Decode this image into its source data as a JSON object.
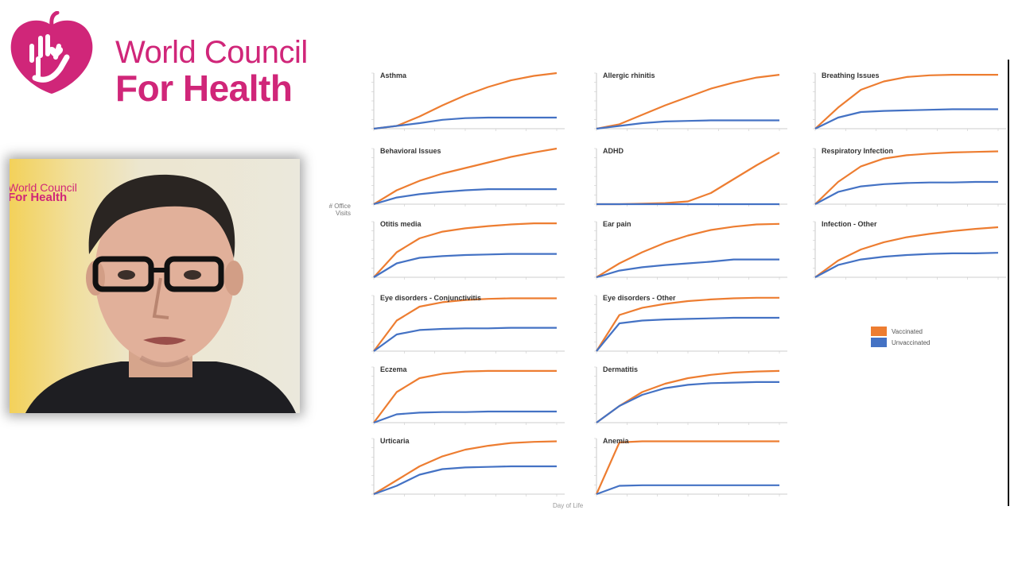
{
  "logo": {
    "line1": "World Council",
    "line2": "For Health",
    "color": "#d02679"
  },
  "video": {
    "logo_line1": "World Council",
    "logo_line2": "For Health"
  },
  "axis": {
    "ylabel": "# Office Visits",
    "xlabel": "Day of Life"
  },
  "legend": [
    {
      "label": "Vaccinated",
      "color": "#ed7d31"
    },
    {
      "label": "Unvaccinated",
      "color": "#4472c4"
    }
  ],
  "chart_data": [
    {
      "type": "line",
      "title": "Asthma",
      "series": [
        {
          "name": "Vaccinated",
          "values": [
            0,
            0.05,
            0.22,
            0.42,
            0.6,
            0.75,
            0.87,
            0.95,
            1.0
          ]
        },
        {
          "name": "Unvaccinated",
          "values": [
            0,
            0.05,
            0.1,
            0.16,
            0.19,
            0.2,
            0.2,
            0.2,
            0.2
          ]
        }
      ]
    },
    {
      "type": "line",
      "title": "Allergic rhinitis",
      "series": [
        {
          "name": "Vaccinated",
          "values": [
            0,
            0.08,
            0.25,
            0.42,
            0.57,
            0.72,
            0.83,
            0.92,
            0.97
          ]
        },
        {
          "name": "Unvaccinated",
          "values": [
            0,
            0.05,
            0.1,
            0.13,
            0.14,
            0.15,
            0.15,
            0.15,
            0.15
          ]
        }
      ]
    },
    {
      "type": "line",
      "title": "Breathing Issues",
      "series": [
        {
          "name": "Vaccinated",
          "values": [
            0,
            0.38,
            0.7,
            0.85,
            0.93,
            0.96,
            0.97,
            0.97,
            0.97
          ]
        },
        {
          "name": "Unvaccinated",
          "values": [
            0,
            0.2,
            0.3,
            0.32,
            0.33,
            0.34,
            0.35,
            0.35,
            0.35
          ]
        }
      ]
    },
    {
      "type": "line",
      "title": "Behavioral Issues",
      "series": [
        {
          "name": "Vaccinated",
          "values": [
            0,
            0.25,
            0.42,
            0.55,
            0.65,
            0.75,
            0.85,
            0.93,
            1.0
          ]
        },
        {
          "name": "Unvaccinated",
          "values": [
            0,
            0.12,
            0.18,
            0.22,
            0.25,
            0.27,
            0.27,
            0.27,
            0.27
          ]
        }
      ]
    },
    {
      "type": "line",
      "title": "ADHD",
      "series": [
        {
          "name": "Vaccinated",
          "values": [
            0,
            0,
            0.01,
            0.02,
            0.05,
            0.2,
            0.45,
            0.7,
            0.93
          ]
        },
        {
          "name": "Unvaccinated",
          "values": [
            0,
            0,
            0,
            0,
            0,
            0,
            0,
            0,
            0
          ]
        }
      ]
    },
    {
      "type": "line",
      "title": "Respiratory Infection",
      "series": [
        {
          "name": "Vaccinated",
          "values": [
            0,
            0.4,
            0.68,
            0.82,
            0.88,
            0.91,
            0.93,
            0.94,
            0.95
          ]
        },
        {
          "name": "Unvaccinated",
          "values": [
            0,
            0.22,
            0.32,
            0.36,
            0.38,
            0.39,
            0.39,
            0.4,
            0.4
          ]
        }
      ]
    },
    {
      "type": "line",
      "title": "Otitis media",
      "series": [
        {
          "name": "Vaccinated",
          "values": [
            0,
            0.45,
            0.7,
            0.82,
            0.88,
            0.92,
            0.95,
            0.97,
            0.97
          ]
        },
        {
          "name": "Unvaccinated",
          "values": [
            0,
            0.25,
            0.35,
            0.38,
            0.4,
            0.41,
            0.42,
            0.42,
            0.42
          ]
        }
      ]
    },
    {
      "type": "line",
      "title": "Ear pain",
      "series": [
        {
          "name": "Vaccinated",
          "values": [
            0,
            0.25,
            0.45,
            0.62,
            0.75,
            0.85,
            0.91,
            0.95,
            0.96
          ]
        },
        {
          "name": "Unvaccinated",
          "values": [
            0,
            0.12,
            0.18,
            0.22,
            0.25,
            0.28,
            0.32,
            0.32,
            0.32
          ]
        }
      ]
    },
    {
      "type": "line",
      "title": "Infection - Other",
      "series": [
        {
          "name": "Vaccinated",
          "values": [
            0,
            0.3,
            0.5,
            0.63,
            0.72,
            0.78,
            0.83,
            0.87,
            0.9
          ]
        },
        {
          "name": "Unvaccinated",
          "values": [
            0,
            0.22,
            0.32,
            0.37,
            0.4,
            0.42,
            0.43,
            0.43,
            0.44
          ]
        }
      ]
    },
    {
      "type": "line",
      "title": "Eye disorders - Conjunctivitis",
      "series": [
        {
          "name": "Vaccinated",
          "values": [
            0,
            0.55,
            0.8,
            0.88,
            0.92,
            0.94,
            0.95,
            0.95,
            0.95
          ]
        },
        {
          "name": "Unvaccinated",
          "values": [
            0,
            0.3,
            0.38,
            0.4,
            0.41,
            0.41,
            0.42,
            0.42,
            0.42
          ]
        }
      ]
    },
    {
      "type": "line",
      "title": "Eye disorders - Other",
      "series": [
        {
          "name": "Vaccinated",
          "values": [
            0,
            0.65,
            0.78,
            0.85,
            0.9,
            0.93,
            0.95,
            0.96,
            0.96
          ]
        },
        {
          "name": "Unvaccinated",
          "values": [
            0,
            0.5,
            0.55,
            0.57,
            0.58,
            0.59,
            0.6,
            0.6,
            0.6
          ]
        }
      ]
    },
    {
      "type": "line",
      "title": "Eczema",
      "series": [
        {
          "name": "Vaccinated",
          "values": [
            0,
            0.55,
            0.8,
            0.88,
            0.92,
            0.93,
            0.93,
            0.93,
            0.93
          ]
        },
        {
          "name": "Unvaccinated",
          "values": [
            0,
            0.15,
            0.18,
            0.19,
            0.19,
            0.2,
            0.2,
            0.2,
            0.2
          ]
        }
      ]
    },
    {
      "type": "line",
      "title": "Dermatitis",
      "series": [
        {
          "name": "Vaccinated",
          "values": [
            0,
            0.3,
            0.55,
            0.7,
            0.8,
            0.86,
            0.9,
            0.92,
            0.93
          ]
        },
        {
          "name": "Unvaccinated",
          "values": [
            0,
            0.3,
            0.5,
            0.62,
            0.68,
            0.71,
            0.72,
            0.73,
            0.73
          ]
        }
      ]
    },
    {
      "type": "line",
      "title": "Urticaria",
      "series": [
        {
          "name": "Vaccinated",
          "values": [
            0,
            0.25,
            0.5,
            0.68,
            0.8,
            0.87,
            0.92,
            0.94,
            0.95
          ]
        },
        {
          "name": "Unvaccinated",
          "values": [
            0,
            0.15,
            0.35,
            0.45,
            0.48,
            0.49,
            0.5,
            0.5,
            0.5
          ]
        }
      ]
    },
    {
      "type": "line",
      "title": "Anemia",
      "series": [
        {
          "name": "Vaccinated",
          "values": [
            0,
            0.93,
            0.95,
            0.95,
            0.95,
            0.95,
            0.95,
            0.95,
            0.95
          ]
        },
        {
          "name": "Unvaccinated",
          "values": [
            0,
            0.15,
            0.16,
            0.16,
            0.16,
            0.16,
            0.16,
            0.16,
            0.16
          ]
        }
      ]
    }
  ]
}
